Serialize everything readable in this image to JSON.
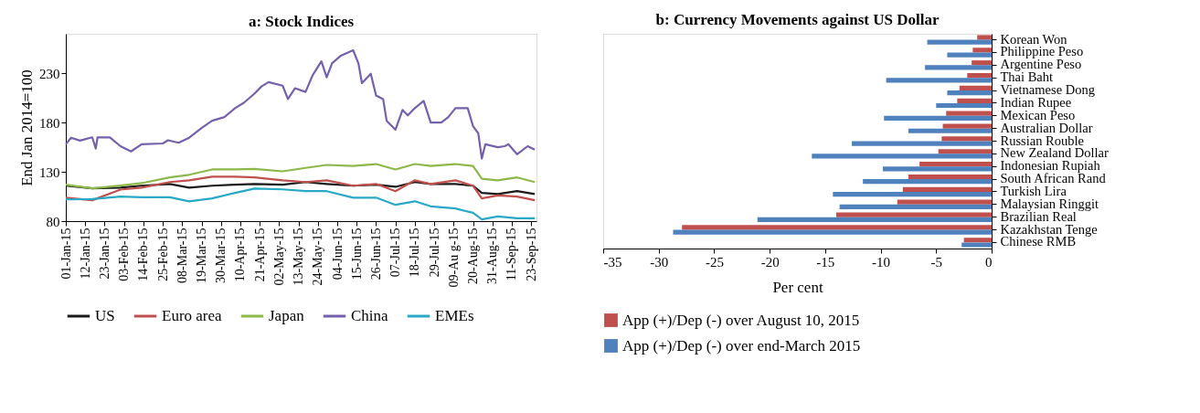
{
  "chart_data": [
    {
      "type": "line",
      "title": "a: Stock Indices",
      "ylabel": "End Jan 2014=100",
      "legend": "bottom",
      "grid": false,
      "x": [
        "2015-01-01",
        "2015-01-16",
        "2015-02-01",
        "2015-02-13",
        "2015-03-01",
        "2015-03-12",
        "2015-03-25",
        "2015-04-07",
        "2015-04-18",
        "2015-05-04",
        "2015-05-17",
        "2015-05-29",
        "2015-06-13",
        "2015-06-26",
        "2015-07-07",
        "2015-07-18",
        "2015-07-27",
        "2015-08-10",
        "2015-08-20",
        "2015-08-25",
        "2015-09-03",
        "2015-09-14",
        "2015-09-24"
      ],
      "xlim": [
        "2015-01-01",
        "2015-09-25"
      ],
      "xticks": [
        {
          "value": "2015-01-01",
          "label": "01-Jan-15"
        },
        {
          "value": "2015-01-12",
          "label": "12-Jan-15"
        },
        {
          "value": "2015-01-23",
          "label": "23-Jan-15"
        },
        {
          "value": "2015-02-03",
          "label": "03-Feb-15"
        },
        {
          "value": "2015-02-14",
          "label": "14-Feb-15"
        },
        {
          "value": "2015-02-25",
          "label": "25-Feb-15"
        },
        {
          "value": "2015-03-08",
          "label": "08-Mar-15"
        },
        {
          "value": "2015-03-19",
          "label": "19-Mar-15"
        },
        {
          "value": "2015-03-30",
          "label": "30-Mar-15"
        },
        {
          "value": "2015-04-10",
          "label": "10-Apr-15"
        },
        {
          "value": "2015-04-21",
          "label": "21-Apr-15"
        },
        {
          "value": "2015-05-02",
          "label": "02-May-15"
        },
        {
          "value": "2015-05-13",
          "label": "13-May-15"
        },
        {
          "value": "2015-05-24",
          "label": "24-May-15"
        },
        {
          "value": "2015-06-04",
          "label": "04-Jun-15"
        },
        {
          "value": "2015-06-15",
          "label": "15-Jun-15"
        },
        {
          "value": "2015-06-26",
          "label": "26-Jun-15"
        },
        {
          "value": "2015-07-07",
          "label": "07-Jul-15"
        },
        {
          "value": "2015-07-18",
          "label": "18-Jul-15"
        },
        {
          "value": "2015-07-29",
          "label": "29-Jul-15"
        },
        {
          "value": "2015-08-09",
          "label": "09-Au g-15"
        },
        {
          "value": "2015-08-20",
          "label": "20-Aug-15"
        },
        {
          "value": "2015-08-31",
          "label": "31-Aug-15"
        },
        {
          "value": "2015-09-11",
          "label": "11-Sep-15"
        },
        {
          "value": "2015-09-22",
          "label": "23-Sep-15"
        }
      ],
      "ylim": [
        80,
        270
      ],
      "yticks": [
        80,
        130,
        180,
        230
      ],
      "series": [
        {
          "name": "US",
          "color": "#1a1a1a",
          "values": [
            115.9,
            113.3,
            114,
            115.9,
            117.7,
            114,
            115.9,
            117,
            117.7,
            117,
            119.6,
            117.7,
            115.9,
            117,
            114.8,
            119.6,
            117.7,
            117.7,
            115.9,
            108.6,
            107.5,
            110.4,
            107.5
          ]
        },
        {
          "name": "Euro area",
          "color": "#c0504d",
          "values": [
            103.8,
            101.2,
            112,
            114,
            119.6,
            121.4,
            125,
            125,
            124.3,
            121.4,
            119.6,
            121.4,
            115.9,
            117.7,
            110.4,
            121.4,
            117.7,
            121.4,
            115.9,
            103,
            106,
            104.9,
            101.2
          ]
        },
        {
          "name": "Japan",
          "color": "#8db84a",
          "values": [
            117,
            113.3,
            116,
            118.5,
            124.3,
            127,
            132.4,
            132.4,
            133,
            130.5,
            134,
            137,
            136,
            137.9,
            132.4,
            137.9,
            136,
            137.9,
            136,
            123,
            121.4,
            124.3,
            119.6
          ]
        },
        {
          "name": "China",
          "color": "#7560ac",
          "x": [
            "2015-01-01",
            "2015-01-04",
            "2015-01-09",
            "2015-01-16",
            "2015-01-18",
            "2015-01-19",
            "2015-01-26",
            "2015-02-01",
            "2015-02-07",
            "2015-02-13",
            "2015-02-25",
            "2015-02-28",
            "2015-03-06",
            "2015-03-12",
            "2015-03-19",
            "2015-03-25",
            "2015-04-01",
            "2015-04-07",
            "2015-04-12",
            "2015-04-18",
            "2015-04-22",
            "2015-04-26",
            "2015-05-04",
            "2015-05-07",
            "2015-05-11",
            "2015-05-17",
            "2015-05-21",
            "2015-05-26",
            "2015-05-29",
            "2015-06-01",
            "2015-06-06",
            "2015-06-13",
            "2015-06-16",
            "2015-06-18",
            "2015-06-23",
            "2015-06-26",
            "2015-06-30",
            "2015-07-02",
            "2015-07-07",
            "2015-07-11",
            "2015-07-14",
            "2015-07-18",
            "2015-07-23",
            "2015-07-27",
            "2015-08-02",
            "2015-08-06",
            "2015-08-10",
            "2015-08-17",
            "2015-08-20",
            "2015-08-23",
            "2015-08-25",
            "2015-08-27",
            "2015-09-03",
            "2015-09-07",
            "2015-09-09",
            "2015-09-14",
            "2015-09-20",
            "2015-09-24"
          ],
          "values": [
            158,
            164.6,
            161.7,
            165,
            153.6,
            165,
            165,
            156,
            150.7,
            158,
            158.8,
            162,
            159.5,
            164.6,
            174.5,
            181.8,
            185.5,
            194.6,
            200,
            209.3,
            216.6,
            221,
            217.4,
            203.8,
            214.8,
            211,
            228,
            242,
            225.8,
            240,
            247.8,
            253.3,
            240,
            220,
            229.5,
            207.5,
            203.8,
            181.8,
            172.7,
            192.8,
            187.3,
            194.6,
            202,
            180,
            180,
            185.5,
            194.6,
            194.6,
            176.3,
            169,
            143.4,
            158,
            155,
            156,
            158,
            147.8,
            156,
            152.5
          ]
        },
        {
          "name": "EMEs",
          "color": "#2aa9c6",
          "values": [
            102,
            102.3,
            104.9,
            104.2,
            104.2,
            100.1,
            103,
            108.6,
            113,
            112.2,
            110.4,
            110.4,
            103.8,
            103.8,
            96.5,
            100.1,
            95,
            92.8,
            88.4,
            81.8,
            84.8,
            82.9,
            82.9
          ]
        }
      ]
    },
    {
      "type": "bar",
      "orientation": "horizontal",
      "title": "b: Currency Movements against US Dollar",
      "xlabel": "Per cent",
      "legend": "bottom",
      "grid": false,
      "categories": [
        "Korean Won",
        "Philippine Peso",
        "Argentine Peso",
        "Thai Baht",
        "Vietnamese Dong",
        "Indian Rupee",
        "Mexican Peso",
        "Australian Dollar",
        "Russian Rouble",
        "New Zealand Dollar",
        "Indonesian Rupiah",
        "South African Rand",
        "Turkish Lira",
        "Malaysian Ringgit",
        "Brazilian Real",
        "Kazakhstan Tenge",
        "Chinese RMB"
      ],
      "xlim": [
        -35,
        0
      ],
      "xticks": [
        -35,
        -30,
        -25,
        -20,
        -15,
        -10,
        -5,
        0
      ],
      "series": [
        {
          "name": "App (+)/Dep (-) over August 10, 2015",
          "color": "#c0504d",
          "values": [
            -1.3,
            -1.7,
            -1.8,
            -2.2,
            -2.9,
            -3.1,
            -4.1,
            -4.4,
            -4.5,
            -4.8,
            -6.5,
            -7.5,
            -8.0,
            -8.5,
            -14.0,
            -27.9,
            -2.5
          ]
        },
        {
          "name": "App (+)/Dep (-) over end-March 2015",
          "color": "#4f81bd",
          "values": [
            -5.8,
            -4.0,
            -6.0,
            -9.5,
            -4.0,
            -5.0,
            -9.7,
            -7.5,
            -12.6,
            -16.2,
            -9.8,
            -11.6,
            -14.3,
            -13.7,
            -21.1,
            -28.7,
            -2.7
          ]
        }
      ]
    }
  ]
}
